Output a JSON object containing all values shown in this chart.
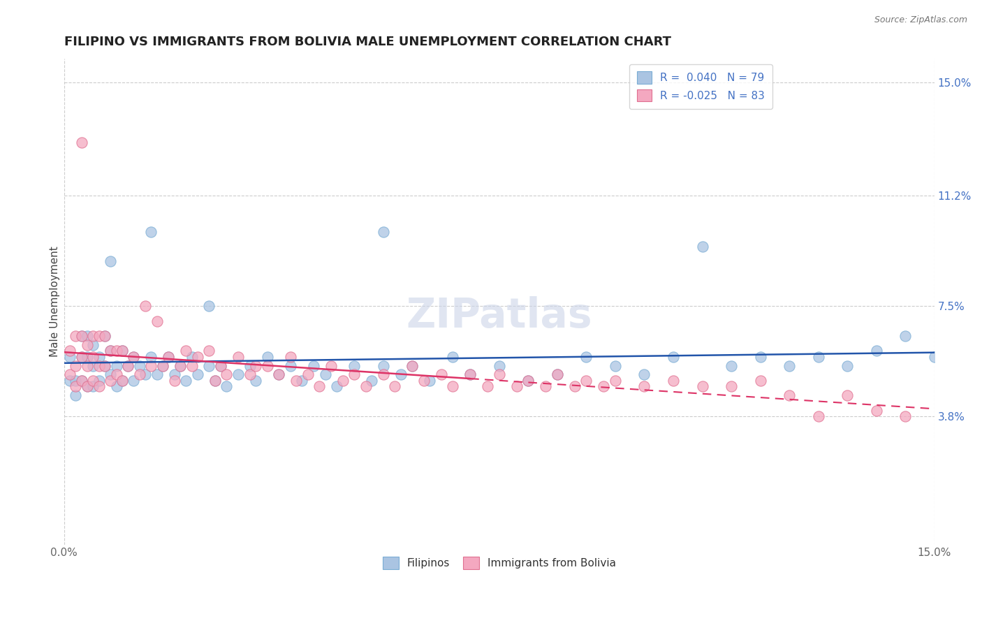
{
  "title": "FILIPINO VS IMMIGRANTS FROM BOLIVIA MALE UNEMPLOYMENT CORRELATION CHART",
  "source": "Source: ZipAtlas.com",
  "ylabel": "Male Unemployment",
  "x_min": 0.0,
  "x_max": 0.15,
  "y_min": -0.005,
  "y_max": 0.158,
  "y_ticks": [
    0.038,
    0.075,
    0.112,
    0.15
  ],
  "y_tick_labels": [
    "3.8%",
    "7.5%",
    "11.2%",
    "15.0%"
  ],
  "x_ticks": [
    0.0,
    0.15
  ],
  "x_tick_labels": [
    "0.0%",
    "15.0%"
  ],
  "grid_color": "#cccccc",
  "background_color": "#ffffff",
  "watermark": "ZIPatlas",
  "series": [
    {
      "name": "Filipinos",
      "color": "#aac4e2",
      "edge_color": "#7aadd4",
      "R": 0.04,
      "N": 79,
      "line_color": "#2255aa",
      "x": [
        0.001,
        0.001,
        0.002,
        0.002,
        0.003,
        0.003,
        0.003,
        0.004,
        0.004,
        0.004,
        0.005,
        0.005,
        0.005,
        0.006,
        0.006,
        0.007,
        0.007,
        0.008,
        0.008,
        0.009,
        0.009,
        0.01,
        0.01,
        0.011,
        0.012,
        0.012,
        0.013,
        0.014,
        0.015,
        0.016,
        0.017,
        0.018,
        0.019,
        0.02,
        0.021,
        0.022,
        0.023,
        0.025,
        0.026,
        0.027,
        0.028,
        0.03,
        0.032,
        0.033,
        0.035,
        0.037,
        0.039,
        0.041,
        0.043,
        0.045,
        0.047,
        0.05,
        0.053,
        0.055,
        0.058,
        0.06,
        0.063,
        0.067,
        0.07,
        0.075,
        0.08,
        0.085,
        0.09,
        0.095,
        0.1,
        0.105,
        0.11,
        0.115,
        0.12,
        0.125,
        0.13,
        0.135,
        0.14,
        0.145,
        0.15,
        0.025,
        0.055,
        0.008,
        0.015
      ],
      "y": [
        0.058,
        0.05,
        0.05,
        0.045,
        0.065,
        0.058,
        0.05,
        0.065,
        0.058,
        0.048,
        0.062,
        0.055,
        0.048,
        0.058,
        0.05,
        0.065,
        0.055,
        0.06,
        0.052,
        0.055,
        0.048,
        0.06,
        0.05,
        0.055,
        0.058,
        0.05,
        0.055,
        0.052,
        0.058,
        0.052,
        0.055,
        0.058,
        0.052,
        0.055,
        0.05,
        0.058,
        0.052,
        0.055,
        0.05,
        0.055,
        0.048,
        0.052,
        0.055,
        0.05,
        0.058,
        0.052,
        0.055,
        0.05,
        0.055,
        0.052,
        0.048,
        0.055,
        0.05,
        0.055,
        0.052,
        0.055,
        0.05,
        0.058,
        0.052,
        0.055,
        0.05,
        0.052,
        0.058,
        0.055,
        0.052,
        0.058,
        0.095,
        0.055,
        0.058,
        0.055,
        0.058,
        0.055,
        0.06,
        0.065,
        0.058,
        0.075,
        0.1,
        0.09,
        0.1
      ]
    },
    {
      "name": "Immigrants from Bolivia",
      "color": "#f4a8c0",
      "edge_color": "#e07090",
      "R": -0.025,
      "N": 83,
      "line_color": "#dd3366",
      "x": [
        0.001,
        0.001,
        0.002,
        0.002,
        0.002,
        0.003,
        0.003,
        0.003,
        0.004,
        0.004,
        0.004,
        0.005,
        0.005,
        0.005,
        0.006,
        0.006,
        0.006,
        0.007,
        0.007,
        0.008,
        0.008,
        0.009,
        0.009,
        0.01,
        0.01,
        0.011,
        0.012,
        0.013,
        0.014,
        0.015,
        0.016,
        0.017,
        0.018,
        0.019,
        0.02,
        0.021,
        0.022,
        0.023,
        0.025,
        0.026,
        0.027,
        0.028,
        0.03,
        0.032,
        0.033,
        0.035,
        0.037,
        0.039,
        0.04,
        0.042,
        0.044,
        0.046,
        0.048,
        0.05,
        0.052,
        0.055,
        0.057,
        0.06,
        0.062,
        0.065,
        0.067,
        0.07,
        0.073,
        0.075,
        0.078,
        0.08,
        0.083,
        0.085,
        0.088,
        0.09,
        0.093,
        0.095,
        0.1,
        0.105,
        0.11,
        0.115,
        0.12,
        0.125,
        0.13,
        0.135,
        0.14,
        0.145,
        0.003
      ],
      "y": [
        0.06,
        0.052,
        0.065,
        0.055,
        0.048,
        0.065,
        0.058,
        0.05,
        0.062,
        0.055,
        0.048,
        0.065,
        0.058,
        0.05,
        0.065,
        0.055,
        0.048,
        0.065,
        0.055,
        0.06,
        0.05,
        0.06,
        0.052,
        0.06,
        0.05,
        0.055,
        0.058,
        0.052,
        0.075,
        0.055,
        0.07,
        0.055,
        0.058,
        0.05,
        0.055,
        0.06,
        0.055,
        0.058,
        0.06,
        0.05,
        0.055,
        0.052,
        0.058,
        0.052,
        0.055,
        0.055,
        0.052,
        0.058,
        0.05,
        0.052,
        0.048,
        0.055,
        0.05,
        0.052,
        0.048,
        0.052,
        0.048,
        0.055,
        0.05,
        0.052,
        0.048,
        0.052,
        0.048,
        0.052,
        0.048,
        0.05,
        0.048,
        0.052,
        0.048,
        0.05,
        0.048,
        0.05,
        0.048,
        0.05,
        0.048,
        0.048,
        0.05,
        0.045,
        0.038,
        0.045,
        0.04,
        0.038,
        0.13
      ]
    }
  ],
  "title_fontsize": 13,
  "axis_label_fontsize": 11,
  "tick_fontsize": 11,
  "watermark_fontsize": 42,
  "watermark_color": "#ccd5e8",
  "watermark_alpha": 0.6
}
